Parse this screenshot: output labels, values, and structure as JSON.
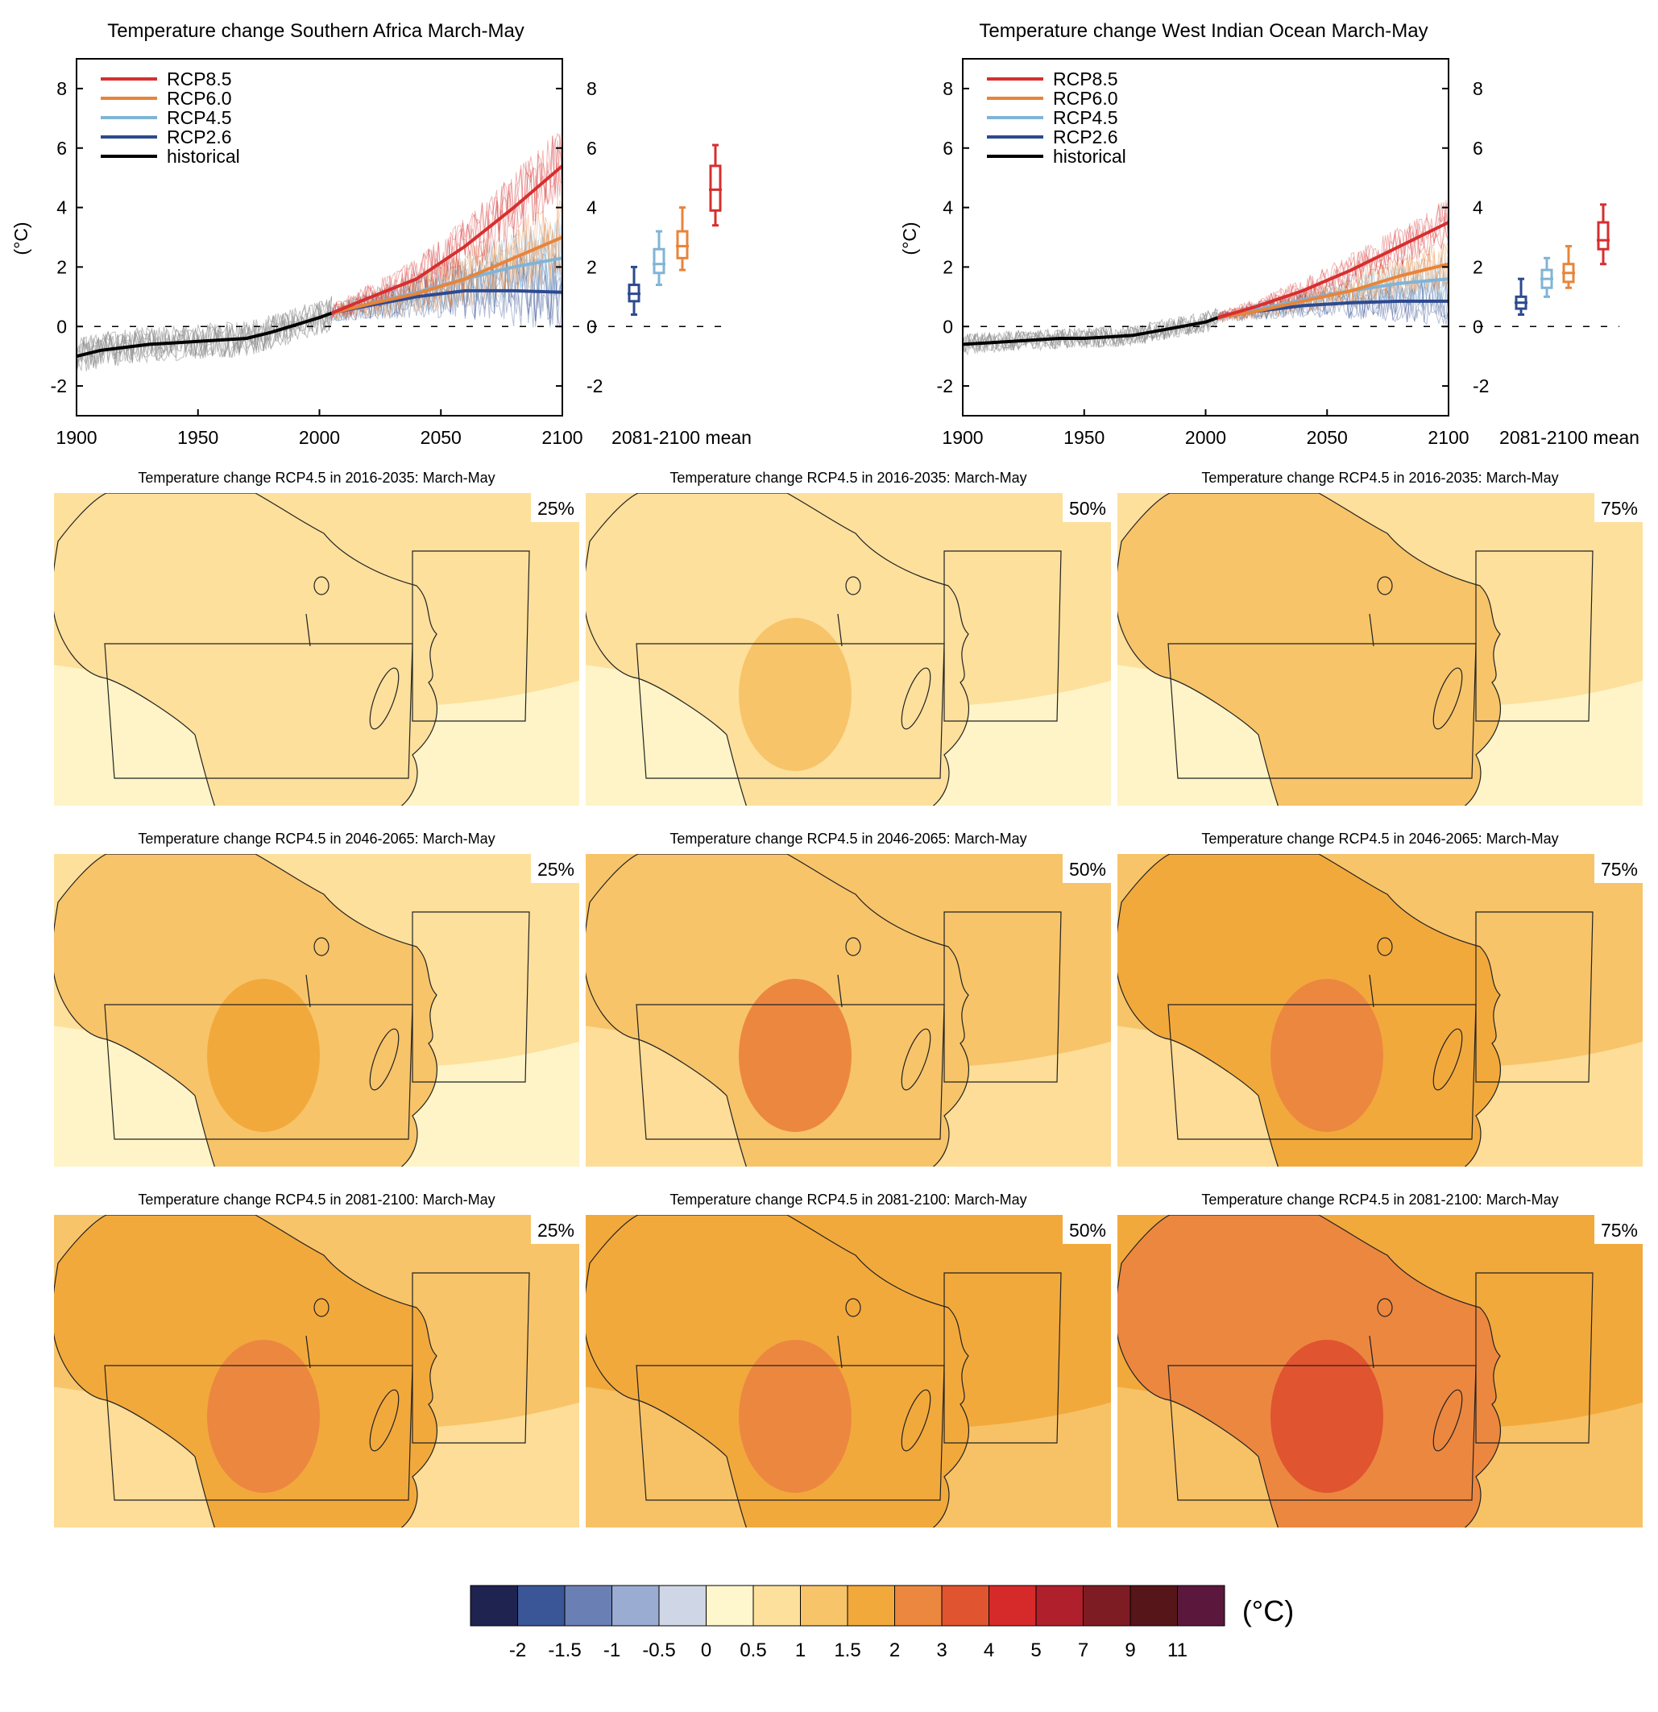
{
  "colors": {
    "rcp85": "#d62f2f",
    "rcp60": "#e8843a",
    "rcp45": "#80b4d6",
    "rcp26": "#2d4a8f",
    "historical": "#000000",
    "ensemble_grey": "#8a8a8a",
    "map_levels": [
      "#fef6cc",
      "#fde09c",
      "#f7c46a",
      "#f2a93c",
      "#ec8740",
      "#e0542f"
    ]
  },
  "chart_data": [
    {
      "type": "line",
      "title": "Temperature change Southern Africa March-May",
      "ylabel": "(°C)",
      "xlabel": "",
      "xlim": [
        1900,
        2100
      ],
      "ylim": [
        -3,
        9
      ],
      "xticks": [
        "1900",
        "1950",
        "2000",
        "2050",
        "2100"
      ],
      "yticks": [
        "-2",
        "0",
        "2",
        "4",
        "6",
        "8"
      ],
      "legend": {
        "position": "top-left",
        "entries": [
          "RCP8.5",
          "RCP6.0",
          "RCP4.5",
          "RCP2.6",
          "historical"
        ]
      },
      "series": [
        {
          "name": "historical",
          "x": [
            1900,
            1910,
            1920,
            1930,
            1940,
            1950,
            1960,
            1970,
            1980,
            1990,
            2000,
            2005
          ],
          "y": [
            -1.0,
            -0.8,
            -0.7,
            -0.6,
            -0.55,
            -0.5,
            -0.45,
            -0.4,
            -0.2,
            0.05,
            0.3,
            0.45
          ]
        },
        {
          "name": "RCP2.6",
          "x": [
            2005,
            2020,
            2040,
            2060,
            2080,
            2100
          ],
          "y": [
            0.45,
            0.7,
            1.0,
            1.2,
            1.2,
            1.15
          ]
        },
        {
          "name": "RCP4.5",
          "x": [
            2005,
            2020,
            2040,
            2060,
            2080,
            2100
          ],
          "y": [
            0.45,
            0.75,
            1.15,
            1.6,
            2.0,
            2.3
          ]
        },
        {
          "name": "RCP6.0",
          "x": [
            2005,
            2020,
            2040,
            2060,
            2080,
            2100
          ],
          "y": [
            0.45,
            0.75,
            1.1,
            1.6,
            2.3,
            3.0
          ]
        },
        {
          "name": "RCP8.5",
          "x": [
            2005,
            2020,
            2040,
            2060,
            2080,
            2100
          ],
          "y": [
            0.45,
            0.95,
            1.6,
            2.7,
            4.0,
            5.4
          ]
        }
      ],
      "box_axis_label": "2081-2100 mean",
      "boxes": [
        {
          "name": "RCP2.6",
          "min": 0.4,
          "q1": 0.85,
          "median": 1.1,
          "q3": 1.4,
          "max": 2.0
        },
        {
          "name": "RCP4.5",
          "min": 1.4,
          "q1": 1.8,
          "median": 2.1,
          "q3": 2.6,
          "max": 3.2
        },
        {
          "name": "RCP6.0",
          "min": 1.9,
          "q1": 2.3,
          "median": 2.7,
          "q3": 3.2,
          "max": 4.0
        },
        {
          "name": "RCP8.5",
          "min": 3.4,
          "q1": 3.9,
          "median": 4.6,
          "q3": 5.4,
          "max": 6.1
        }
      ]
    },
    {
      "type": "line",
      "title": "Temperature change West Indian Ocean March-May",
      "ylabel": "(°C)",
      "xlabel": "",
      "xlim": [
        1900,
        2100
      ],
      "ylim": [
        -3,
        9
      ],
      "xticks": [
        "1900",
        "1950",
        "2000",
        "2050",
        "2100"
      ],
      "yticks": [
        "-2",
        "0",
        "2",
        "4",
        "6",
        "8"
      ],
      "legend": {
        "position": "top-left",
        "entries": [
          "RCP8.5",
          "RCP6.0",
          "RCP4.5",
          "RCP2.6",
          "historical"
        ]
      },
      "series": [
        {
          "name": "historical",
          "x": [
            1900,
            1910,
            1920,
            1930,
            1940,
            1950,
            1960,
            1970,
            1980,
            1990,
            2000,
            2005
          ],
          "y": [
            -0.6,
            -0.55,
            -0.5,
            -0.45,
            -0.4,
            -0.4,
            -0.35,
            -0.3,
            -0.15,
            0.0,
            0.15,
            0.3
          ]
        },
        {
          "name": "RCP2.6",
          "x": [
            2005,
            2020,
            2040,
            2060,
            2080,
            2100
          ],
          "y": [
            0.3,
            0.5,
            0.7,
            0.8,
            0.85,
            0.85
          ]
        },
        {
          "name": "RCP4.5",
          "x": [
            2005,
            2020,
            2040,
            2060,
            2080,
            2100
          ],
          "y": [
            0.3,
            0.55,
            0.9,
            1.2,
            1.45,
            1.6
          ]
        },
        {
          "name": "RCP6.0",
          "x": [
            2005,
            2020,
            2040,
            2060,
            2080,
            2100
          ],
          "y": [
            0.3,
            0.5,
            0.85,
            1.2,
            1.7,
            2.1
          ]
        },
        {
          "name": "RCP8.5",
          "x": [
            2005,
            2020,
            2040,
            2060,
            2080,
            2100
          ],
          "y": [
            0.3,
            0.65,
            1.2,
            1.9,
            2.7,
            3.5
          ]
        }
      ],
      "box_axis_label": "2081-2100 mean",
      "boxes": [
        {
          "name": "RCP2.6",
          "min": 0.4,
          "q1": 0.6,
          "median": 0.8,
          "q3": 1.0,
          "max": 1.6
        },
        {
          "name": "RCP4.5",
          "min": 1.0,
          "q1": 1.3,
          "median": 1.6,
          "q3": 1.9,
          "max": 2.3
        },
        {
          "name": "RCP6.0",
          "min": 1.3,
          "q1": 1.5,
          "median": 1.8,
          "q3": 2.1,
          "max": 2.7
        },
        {
          "name": "RCP8.5",
          "min": 2.1,
          "q1": 2.6,
          "median": 2.9,
          "q3": 3.5,
          "max": 4.1
        }
      ]
    }
  ],
  "maps": {
    "rows": [
      {
        "title": "Temperature change RCP4.5 in 2016-2035: March-May",
        "panels": [
          {
            "pct": "25%",
            "bg": 1,
            "land": 1,
            "core": 1
          },
          {
            "pct": "50%",
            "bg": 1,
            "land": 1,
            "core": 2
          },
          {
            "pct": "75%",
            "bg": 1,
            "land": 2,
            "core": 2
          }
        ]
      },
      {
        "title": "Temperature change RCP4.5 in 2046-2065: March-May",
        "panels": [
          {
            "pct": "25%",
            "bg": 1,
            "land": 2,
            "core": 3
          },
          {
            "pct": "50%",
            "bg": 2,
            "land": 2,
            "core": 4
          },
          {
            "pct": "75%",
            "bg": 2,
            "land": 3,
            "core": 4
          }
        ]
      },
      {
        "title": "Temperature change RCP4.5 in 2081-2100: March-May",
        "panels": [
          {
            "pct": "25%",
            "bg": 2,
            "land": 3,
            "core": 4
          },
          {
            "pct": "50%",
            "bg": 3,
            "land": 3,
            "core": 4
          },
          {
            "pct": "75%",
            "bg": 3,
            "land": 4,
            "core": 5
          }
        ]
      }
    ]
  },
  "colorbar": {
    "unit": "(°C)",
    "colors": [
      "#1e2350",
      "#3a5696",
      "#6a80b4",
      "#9aacd2",
      "#cfd6e6",
      "#fef6cc",
      "#fde09c",
      "#f7c46a",
      "#f2a93c",
      "#ec8740",
      "#e0542f",
      "#d62a2a",
      "#b01f2c",
      "#7d1c22",
      "#561518",
      "#5b183c"
    ],
    "labels": [
      "-2",
      "-1.5",
      "-1",
      "-0.5",
      "0",
      "0.5",
      "1",
      "1.5",
      "2",
      "3",
      "4",
      "5",
      "7",
      "9",
      "11"
    ]
  }
}
